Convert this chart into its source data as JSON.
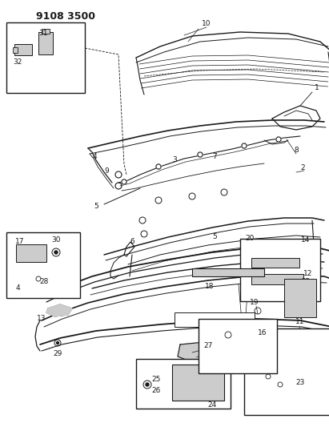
{
  "title": "9108 3500",
  "bg": "#ffffff",
  "lc": "#1a1a1a",
  "fig_w": 4.11,
  "fig_h": 5.33,
  "dpi": 100
}
